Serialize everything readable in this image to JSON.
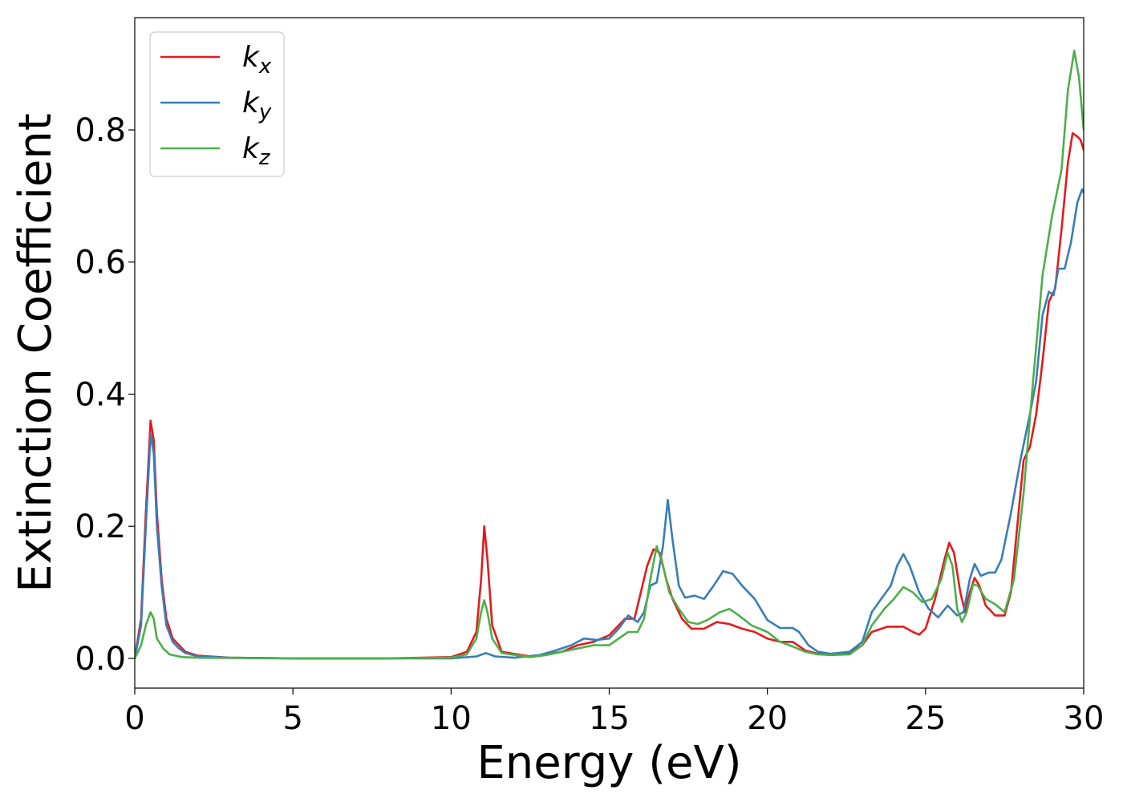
{
  "chart_data": {
    "type": "line",
    "title": "",
    "xlabel": "Energy (eV)",
    "ylabel": "Extinction Coefficient",
    "xlim": [
      0,
      30
    ],
    "ylim": [
      -0.045,
      0.97
    ],
    "xticks": [
      0,
      5,
      10,
      15,
      20,
      25,
      30
    ],
    "xtick_labels": [
      "0",
      "5",
      "10",
      "15",
      "20",
      "25",
      "30"
    ],
    "yticks": [
      0.0,
      0.2,
      0.4,
      0.6,
      0.8
    ],
    "ytick_labels": [
      "0.0",
      "0.2",
      "0.4",
      "0.6",
      "0.8"
    ],
    "grid": false,
    "legend_position": "top-left",
    "series": [
      {
        "name": "k_x",
        "label_main": "k",
        "label_sub": "x",
        "color": "#e41a1c",
        "points": [
          [
            0,
            0.0
          ],
          [
            0.2,
            0.06
          ],
          [
            0.35,
            0.22
          ],
          [
            0.5,
            0.36
          ],
          [
            0.6,
            0.33
          ],
          [
            0.7,
            0.22
          ],
          [
            0.85,
            0.12
          ],
          [
            1.0,
            0.06
          ],
          [
            1.2,
            0.03
          ],
          [
            1.4,
            0.02
          ],
          [
            1.6,
            0.01
          ],
          [
            2.0,
            0.004
          ],
          [
            3,
            0.001
          ],
          [
            5,
            0.0
          ],
          [
            8,
            0.0
          ],
          [
            10,
            0.002
          ],
          [
            10.5,
            0.01
          ],
          [
            10.8,
            0.04
          ],
          [
            10.95,
            0.12
          ],
          [
            11.05,
            0.2
          ],
          [
            11.15,
            0.15
          ],
          [
            11.3,
            0.05
          ],
          [
            11.6,
            0.01
          ],
          [
            12.5,
            0.003
          ],
          [
            13,
            0.006
          ],
          [
            13.5,
            0.01
          ],
          [
            14,
            0.02
          ],
          [
            14.5,
            0.025
          ],
          [
            15,
            0.035
          ],
          [
            15.5,
            0.06
          ],
          [
            15.8,
            0.06
          ],
          [
            16.0,
            0.1
          ],
          [
            16.2,
            0.14
          ],
          [
            16.4,
            0.165
          ],
          [
            16.6,
            0.16
          ],
          [
            16.8,
            0.12
          ],
          [
            17.0,
            0.09
          ],
          [
            17.3,
            0.06
          ],
          [
            17.6,
            0.045
          ],
          [
            18.0,
            0.045
          ],
          [
            18.4,
            0.055
          ],
          [
            18.8,
            0.052
          ],
          [
            19.2,
            0.045
          ],
          [
            19.6,
            0.04
          ],
          [
            20.0,
            0.03
          ],
          [
            20.4,
            0.025
          ],
          [
            20.8,
            0.025
          ],
          [
            21.2,
            0.012
          ],
          [
            21.6,
            0.007
          ],
          [
            22.0,
            0.006
          ],
          [
            22.6,
            0.008
          ],
          [
            23.0,
            0.02
          ],
          [
            23.3,
            0.04
          ],
          [
            23.8,
            0.048
          ],
          [
            24.3,
            0.048
          ],
          [
            24.6,
            0.04
          ],
          [
            24.8,
            0.036
          ],
          [
            25.0,
            0.045
          ],
          [
            25.3,
            0.09
          ],
          [
            25.6,
            0.15
          ],
          [
            25.75,
            0.175
          ],
          [
            25.9,
            0.16
          ],
          [
            26.1,
            0.1
          ],
          [
            26.25,
            0.07
          ],
          [
            26.4,
            0.1
          ],
          [
            26.55,
            0.122
          ],
          [
            26.7,
            0.11
          ],
          [
            26.9,
            0.08
          ],
          [
            27.2,
            0.065
          ],
          [
            27.5,
            0.065
          ],
          [
            27.7,
            0.1
          ],
          [
            27.9,
            0.2
          ],
          [
            28.1,
            0.3
          ],
          [
            28.3,
            0.32
          ],
          [
            28.5,
            0.37
          ],
          [
            28.7,
            0.45
          ],
          [
            28.9,
            0.54
          ],
          [
            29.1,
            0.56
          ],
          [
            29.3,
            0.65
          ],
          [
            29.5,
            0.75
          ],
          [
            29.65,
            0.795
          ],
          [
            29.8,
            0.79
          ],
          [
            29.9,
            0.785
          ],
          [
            30.0,
            0.77
          ]
        ]
      },
      {
        "name": "k_y",
        "label_main": "k",
        "label_sub": "y",
        "color": "#377eb8",
        "points": [
          [
            0,
            0.0
          ],
          [
            0.2,
            0.05
          ],
          [
            0.35,
            0.2
          ],
          [
            0.5,
            0.34
          ],
          [
            0.6,
            0.31
          ],
          [
            0.7,
            0.2
          ],
          [
            0.85,
            0.11
          ],
          [
            1.0,
            0.05
          ],
          [
            1.2,
            0.025
          ],
          [
            1.4,
            0.015
          ],
          [
            1.6,
            0.008
          ],
          [
            2.0,
            0.003
          ],
          [
            3,
            0.001
          ],
          [
            5,
            0.0
          ],
          [
            8,
            0.0
          ],
          [
            10,
            0.0
          ],
          [
            10.8,
            0.003
          ],
          [
            11.1,
            0.008
          ],
          [
            11.4,
            0.003
          ],
          [
            12,
            0.001
          ],
          [
            12.8,
            0.005
          ],
          [
            13.3,
            0.012
          ],
          [
            13.8,
            0.02
          ],
          [
            14.2,
            0.03
          ],
          [
            14.6,
            0.028
          ],
          [
            15.0,
            0.03
          ],
          [
            15.3,
            0.045
          ],
          [
            15.6,
            0.065
          ],
          [
            15.9,
            0.055
          ],
          [
            16.1,
            0.07
          ],
          [
            16.3,
            0.11
          ],
          [
            16.5,
            0.115
          ],
          [
            16.7,
            0.17
          ],
          [
            16.85,
            0.24
          ],
          [
            17.0,
            0.18
          ],
          [
            17.2,
            0.11
          ],
          [
            17.4,
            0.092
          ],
          [
            17.7,
            0.095
          ],
          [
            18.0,
            0.09
          ],
          [
            18.3,
            0.11
          ],
          [
            18.6,
            0.132
          ],
          [
            18.9,
            0.128
          ],
          [
            19.2,
            0.11
          ],
          [
            19.6,
            0.09
          ],
          [
            20.0,
            0.058
          ],
          [
            20.4,
            0.046
          ],
          [
            20.8,
            0.046
          ],
          [
            21.0,
            0.04
          ],
          [
            21.3,
            0.02
          ],
          [
            21.6,
            0.01
          ],
          [
            22.0,
            0.007
          ],
          [
            22.6,
            0.01
          ],
          [
            23.0,
            0.025
          ],
          [
            23.3,
            0.07
          ],
          [
            23.6,
            0.09
          ],
          [
            23.9,
            0.11
          ],
          [
            24.1,
            0.14
          ],
          [
            24.3,
            0.158
          ],
          [
            24.5,
            0.14
          ],
          [
            24.8,
            0.1
          ],
          [
            25.1,
            0.075
          ],
          [
            25.4,
            0.062
          ],
          [
            25.7,
            0.08
          ],
          [
            26.0,
            0.065
          ],
          [
            26.2,
            0.07
          ],
          [
            26.4,
            0.12
          ],
          [
            26.55,
            0.143
          ],
          [
            26.75,
            0.125
          ],
          [
            27.0,
            0.13
          ],
          [
            27.2,
            0.13
          ],
          [
            27.4,
            0.15
          ],
          [
            27.7,
            0.22
          ],
          [
            28.0,
            0.3
          ],
          [
            28.3,
            0.37
          ],
          [
            28.5,
            0.42
          ],
          [
            28.7,
            0.52
          ],
          [
            28.9,
            0.555
          ],
          [
            29.05,
            0.55
          ],
          [
            29.2,
            0.59
          ],
          [
            29.4,
            0.59
          ],
          [
            29.6,
            0.63
          ],
          [
            29.8,
            0.69
          ],
          [
            29.95,
            0.71
          ],
          [
            30.0,
            0.705
          ]
        ]
      },
      {
        "name": "k_z",
        "label_main": "k",
        "label_sub": "z",
        "color": "#4daf4a",
        "points": [
          [
            0,
            0.0
          ],
          [
            0.2,
            0.02
          ],
          [
            0.35,
            0.05
          ],
          [
            0.5,
            0.07
          ],
          [
            0.6,
            0.06
          ],
          [
            0.7,
            0.03
          ],
          [
            0.9,
            0.015
          ],
          [
            1.1,
            0.006
          ],
          [
            1.5,
            0.002
          ],
          [
            2,
            0.001
          ],
          [
            5,
            0.0
          ],
          [
            8,
            0.0
          ],
          [
            10,
            0.001
          ],
          [
            10.5,
            0.006
          ],
          [
            10.8,
            0.03
          ],
          [
            10.95,
            0.07
          ],
          [
            11.05,
            0.088
          ],
          [
            11.15,
            0.07
          ],
          [
            11.3,
            0.03
          ],
          [
            11.6,
            0.008
          ],
          [
            12.5,
            0.002
          ],
          [
            13,
            0.005
          ],
          [
            13.5,
            0.01
          ],
          [
            14,
            0.015
          ],
          [
            14.5,
            0.02
          ],
          [
            15,
            0.02
          ],
          [
            15.3,
            0.03
          ],
          [
            15.6,
            0.04
          ],
          [
            15.9,
            0.04
          ],
          [
            16.1,
            0.06
          ],
          [
            16.3,
            0.12
          ],
          [
            16.5,
            0.17
          ],
          [
            16.7,
            0.14
          ],
          [
            16.9,
            0.1
          ],
          [
            17.2,
            0.075
          ],
          [
            17.5,
            0.055
          ],
          [
            17.8,
            0.052
          ],
          [
            18.1,
            0.058
          ],
          [
            18.5,
            0.07
          ],
          [
            18.8,
            0.075
          ],
          [
            19.1,
            0.065
          ],
          [
            19.5,
            0.05
          ],
          [
            20.0,
            0.04
          ],
          [
            20.4,
            0.025
          ],
          [
            20.8,
            0.018
          ],
          [
            21.2,
            0.01
          ],
          [
            21.6,
            0.006
          ],
          [
            22.0,
            0.005
          ],
          [
            22.6,
            0.006
          ],
          [
            23.0,
            0.02
          ],
          [
            23.3,
            0.05
          ],
          [
            23.7,
            0.075
          ],
          [
            24.0,
            0.09
          ],
          [
            24.3,
            0.108
          ],
          [
            24.6,
            0.1
          ],
          [
            24.9,
            0.085
          ],
          [
            25.2,
            0.09
          ],
          [
            25.5,
            0.12
          ],
          [
            25.7,
            0.16
          ],
          [
            25.85,
            0.14
          ],
          [
            26.0,
            0.075
          ],
          [
            26.15,
            0.055
          ],
          [
            26.3,
            0.07
          ],
          [
            26.5,
            0.112
          ],
          [
            26.65,
            0.11
          ],
          [
            26.9,
            0.09
          ],
          [
            27.2,
            0.082
          ],
          [
            27.5,
            0.07
          ],
          [
            27.8,
            0.12
          ],
          [
            28.1,
            0.25
          ],
          [
            28.4,
            0.42
          ],
          [
            28.7,
            0.58
          ],
          [
            29.0,
            0.67
          ],
          [
            29.3,
            0.74
          ],
          [
            29.5,
            0.86
          ],
          [
            29.7,
            0.92
          ],
          [
            29.85,
            0.88
          ],
          [
            30.0,
            0.8
          ]
        ]
      }
    ]
  }
}
